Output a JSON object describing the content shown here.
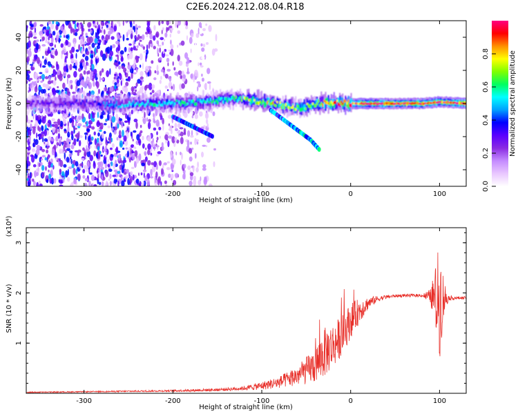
{
  "title": "C2E6.2024.212.08.04.R18",
  "chart_data": [
    {
      "type": "heatmap",
      "xlabel": "Height of straight line (km)",
      "ylabel": "Frequency (Hz)",
      "xlim": [
        -365,
        130
      ],
      "ylim": [
        -50,
        50
      ],
      "xticks": [
        -300,
        -200,
        -100,
        0,
        100
      ],
      "yticks": [
        -40,
        -20,
        0,
        20,
        40
      ],
      "colorbar": {
        "label": "Normalized spectral amplitude",
        "range": [
          0,
          1
        ],
        "ticks": [
          0.0,
          0.2,
          0.4,
          0.6,
          0.8
        ],
        "colors": [
          "#ffffff",
          "#e9c7ff",
          "#c48bff",
          "#8a2be2",
          "#5a00ff",
          "#0000ff",
          "#00a0ff",
          "#00ffff",
          "#00ff60",
          "#7fff00",
          "#ffff00",
          "#ff9000",
          "#ff0000",
          "#ff0080"
        ]
      },
      "ridge": [
        {
          "x": -365,
          "f": 0.0,
          "amp": 0.3
        },
        {
          "x": -330,
          "f": 0.0,
          "amp": 0.32
        },
        {
          "x": -310,
          "f": 0.5,
          "amp": 0.38
        },
        {
          "x": -290,
          "f": 0.0,
          "amp": 0.35
        },
        {
          "x": -270,
          "f": -1.0,
          "amp": 0.45
        },
        {
          "x": -240,
          "f": 0.0,
          "amp": 0.5
        },
        {
          "x": -210,
          "f": 0.0,
          "amp": 0.55
        },
        {
          "x": -180,
          "f": 0.5,
          "amp": 0.55
        },
        {
          "x": -150,
          "f": 2.0,
          "amp": 0.55
        },
        {
          "x": -130,
          "f": 3.0,
          "amp": 0.6
        },
        {
          "x": -110,
          "f": 2.0,
          "amp": 0.7
        },
        {
          "x": -90,
          "f": 0.0,
          "amp": 0.75
        },
        {
          "x": -70,
          "f": -2.0,
          "amp": 0.7
        },
        {
          "x": -55,
          "f": -2.5,
          "amp": 0.65
        },
        {
          "x": -40,
          "f": 0.0,
          "amp": 0.7
        },
        {
          "x": -20,
          "f": 0.5,
          "amp": 0.85
        },
        {
          "x": 0,
          "f": 0.0,
          "amp": 0.9
        },
        {
          "x": 40,
          "f": 0.0,
          "amp": 0.95
        },
        {
          "x": 80,
          "f": 0.0,
          "amp": 0.95
        },
        {
          "x": 100,
          "f": 1.0,
          "amp": 0.9
        },
        {
          "x": 130,
          "f": 0.0,
          "amp": 0.95
        }
      ],
      "side_branches": [
        {
          "x": [
            -200,
            -185,
            -170,
            -155
          ],
          "f": [
            -8,
            -12,
            -16,
            -20
          ],
          "amp": 0.45
        },
        {
          "x": [
            -90,
            -75,
            -60,
            -45,
            -35
          ],
          "f": [
            -4,
            -10,
            -16,
            -22,
            -28
          ],
          "amp": 0.55
        }
      ],
      "noise_region": {
        "x": [
          -365,
          -260
        ],
        "amp": 0.45,
        "extends_faint_to": -150
      }
    },
    {
      "type": "line",
      "xlabel": "Height of straight line (km)",
      "ylabel": "SNR (10 * v/v)",
      "yscale_label": "(x10⁴)",
      "xlim": [
        -365,
        130
      ],
      "ylim": [
        0,
        3.3
      ],
      "xticks": [
        -300,
        -200,
        -100,
        0,
        100
      ],
      "yticks": [
        1,
        2,
        3
      ],
      "series": [
        {
          "color": "#e8302a",
          "x": [
            -365,
            -300,
            -200,
            -150,
            -120,
            -100,
            -80,
            -60,
            -40,
            -30,
            -20,
            -10,
            0,
            10,
            20,
            30,
            40,
            50,
            60,
            70,
            80,
            90,
            95,
            100,
            105,
            110,
            120,
            130
          ],
          "y": [
            0.02,
            0.03,
            0.05,
            0.07,
            0.1,
            0.15,
            0.22,
            0.35,
            0.55,
            0.8,
            0.95,
            1.15,
            1.45,
            1.65,
            1.8,
            1.88,
            1.92,
            1.94,
            1.95,
            1.95,
            1.95,
            1.93,
            1.9,
            1.85,
            1.9,
            1.9,
            1.9,
            1.9
          ],
          "spread": [
            0.01,
            0.01,
            0.02,
            0.03,
            0.04,
            0.08,
            0.12,
            0.2,
            0.35,
            0.5,
            0.45,
            0.4,
            0.35,
            0.25,
            0.12,
            0.06,
            0.04,
            0.03,
            0.03,
            0.03,
            0.03,
            0.15,
            0.6,
            1.2,
            0.4,
            0.05,
            0.03,
            0.03
          ]
        }
      ]
    }
  ]
}
